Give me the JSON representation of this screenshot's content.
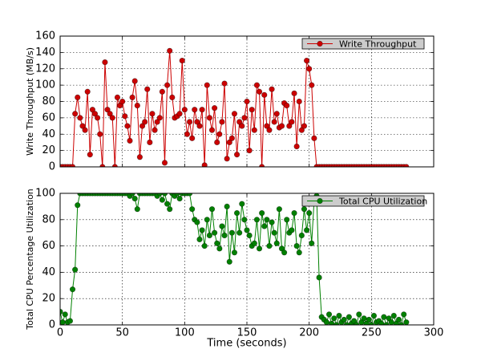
{
  "chart_data": [
    {
      "type": "line",
      "ylabel": "Write Throughput (MB/s)",
      "legend": "upper right",
      "x": [
        0,
        2,
        4,
        6,
        8,
        10,
        12,
        14,
        16,
        18,
        20,
        22,
        24,
        26,
        28,
        30,
        32,
        34,
        36,
        38,
        40,
        42,
        44,
        46,
        48,
        50,
        52,
        54,
        56,
        58,
        60,
        62,
        64,
        66,
        68,
        70,
        72,
        74,
        76,
        78,
        80,
        82,
        84,
        86,
        88,
        90,
        92,
        94,
        96,
        98,
        100,
        102,
        104,
        106,
        108,
        110,
        112,
        114,
        116,
        118,
        120,
        122,
        124,
        126,
        128,
        130,
        132,
        134,
        136,
        138,
        140,
        142,
        144,
        146,
        148,
        150,
        152,
        154,
        156,
        158,
        160,
        162,
        164,
        166,
        168,
        170,
        172,
        174,
        176,
        178,
        180,
        182,
        184,
        186,
        188,
        190,
        192,
        194,
        196,
        198,
        200,
        202,
        204,
        206,
        208,
        210,
        212,
        214,
        216,
        218,
        220,
        222,
        224,
        226,
        228,
        230,
        232,
        234,
        236,
        238,
        240,
        242,
        244,
        246,
        248,
        250,
        252,
        254,
        256,
        258,
        260,
        262,
        264,
        266,
        268,
        270,
        272,
        274,
        276,
        278
      ],
      "series": [
        {
          "name": "Write Throughput",
          "color": "#cc0000",
          "values": [
            0,
            0,
            0,
            0,
            0,
            0,
            65,
            85,
            60,
            50,
            45,
            92,
            15,
            70,
            65,
            60,
            40,
            0,
            128,
            70,
            65,
            60,
            0,
            85,
            75,
            80,
            62,
            50,
            32,
            85,
            105,
            75,
            12,
            50,
            55,
            95,
            30,
            65,
            45,
            55,
            60,
            92,
            5,
            100,
            142,
            85,
            60,
            62,
            65,
            130,
            70,
            40,
            55,
            35,
            70,
            55,
            50,
            70,
            2,
            100,
            60,
            45,
            72,
            30,
            40,
            55,
            102,
            10,
            30,
            35,
            65,
            15,
            55,
            50,
            60,
            80,
            20,
            70,
            45,
            100,
            92,
            0,
            88,
            50,
            45,
            95,
            55,
            65,
            48,
            50,
            78,
            75,
            50,
            55,
            90,
            25,
            80,
            45,
            50,
            130,
            120,
            100,
            35,
            0,
            0,
            0,
            0,
            0,
            0,
            0,
            0,
            0,
            0,
            0,
            0,
            0,
            0,
            0,
            0,
            0,
            0,
            0,
            0,
            0,
            0,
            0,
            0,
            0,
            0,
            0,
            0,
            0,
            0,
            0,
            0,
            0,
            0,
            0,
            0,
            0
          ]
        }
      ],
      "xlim": [
        0,
        300
      ],
      "xticks": [
        0,
        50,
        100,
        150,
        200,
        250,
        300
      ],
      "ylim": [
        0,
        160
      ],
      "yticks": [
        0,
        20,
        40,
        60,
        80,
        100,
        120,
        140,
        160
      ],
      "grid": true
    },
    {
      "type": "line",
      "ylabel": "Total CPU Percentage Utilization",
      "xlabel": "Time (seconds)",
      "legend": "upper right",
      "x": [
        0,
        2,
        4,
        6,
        8,
        10,
        12,
        14,
        16,
        18,
        20,
        22,
        24,
        26,
        28,
        30,
        32,
        34,
        36,
        38,
        40,
        42,
        44,
        46,
        48,
        50,
        52,
        54,
        56,
        58,
        60,
        62,
        64,
        66,
        68,
        70,
        72,
        74,
        76,
        78,
        80,
        82,
        84,
        86,
        88,
        90,
        92,
        94,
        96,
        98,
        100,
        102,
        104,
        106,
        108,
        110,
        112,
        114,
        116,
        118,
        120,
        122,
        124,
        126,
        128,
        130,
        132,
        134,
        136,
        138,
        140,
        142,
        144,
        146,
        148,
        150,
        152,
        154,
        156,
        158,
        160,
        162,
        164,
        166,
        168,
        170,
        172,
        174,
        176,
        178,
        180,
        182,
        184,
        186,
        188,
        190,
        192,
        194,
        196,
        198,
        200,
        202,
        204,
        206,
        208,
        210,
        212,
        214,
        216,
        218,
        220,
        222,
        224,
        226,
        228,
        230,
        232,
        234,
        236,
        238,
        240,
        242,
        244,
        246,
        248,
        250,
        252,
        254,
        256,
        258,
        260,
        262,
        264,
        266,
        268,
        270,
        272,
        274,
        276,
        278
      ],
      "series": [
        {
          "name": "Total CPU Utilization",
          "color": "#008000",
          "values": [
            10,
            2,
            8,
            2,
            3,
            27,
            42,
            91,
            100,
            100,
            100,
            100,
            100,
            100,
            100,
            100,
            100,
            100,
            100,
            100,
            100,
            100,
            100,
            100,
            100,
            100,
            100,
            100,
            98,
            100,
            96,
            88,
            100,
            100,
            100,
            100,
            100,
            100,
            100,
            98,
            100,
            95,
            100,
            92,
            88,
            100,
            98,
            100,
            96,
            100,
            100,
            100,
            100,
            88,
            80,
            78,
            65,
            72,
            60,
            80,
            68,
            88,
            70,
            62,
            58,
            75,
            68,
            90,
            48,
            70,
            55,
            85,
            70,
            92,
            80,
            72,
            68,
            60,
            62,
            80,
            58,
            85,
            75,
            80,
            60,
            78,
            70,
            62,
            88,
            58,
            55,
            80,
            70,
            72,
            85,
            60,
            55,
            68,
            88,
            72,
            85,
            62,
            95,
            98,
            36,
            6,
            4,
            2,
            8,
            1,
            5,
            0,
            7,
            2,
            4,
            0,
            6,
            1,
            3,
            0,
            8,
            2,
            5,
            1,
            4,
            0,
            7,
            2,
            3,
            1,
            6,
            0,
            5,
            2,
            7,
            1,
            4,
            0,
            8,
            2
          ]
        }
      ],
      "xlim": [
        0,
        300
      ],
      "xticks": [
        0,
        50,
        100,
        150,
        200,
        250,
        300
      ],
      "ylim": [
        0,
        100
      ],
      "yticks": [
        0,
        20,
        40,
        60,
        80,
        100
      ],
      "grid": true
    }
  ]
}
